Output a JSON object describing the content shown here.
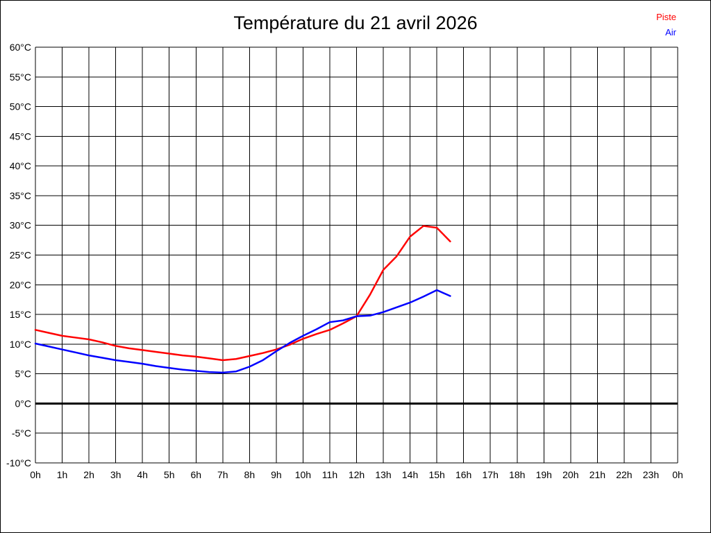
{
  "header": {
    "title": "Température du 21 avril 2026"
  },
  "legend": {
    "position": "top-right",
    "items": [
      {
        "label": "Piste",
        "color": "#ff0000"
      },
      {
        "label": "Air",
        "color": "#0000ff"
      }
    ]
  },
  "chart_data": {
    "type": "line",
    "title": "Température du 21 avril 2026",
    "xlabel": "",
    "ylabel": "",
    "x_unit": "hour of day",
    "y_unit": "°C",
    "xlim": [
      0,
      24
    ],
    "ylim": [
      -10,
      60
    ],
    "x_tick_step": 1,
    "y_tick_step": 5,
    "x_tick_labels": [
      "0h",
      "1h",
      "2h",
      "3h",
      "4h",
      "5h",
      "6h",
      "7h",
      "8h",
      "9h",
      "10h",
      "11h",
      "12h",
      "13h",
      "14h",
      "15h",
      "16h",
      "17h",
      "18h",
      "19h",
      "20h",
      "21h",
      "22h",
      "23h",
      "0h"
    ],
    "y_tick_labels": [
      "60°C",
      "55°C",
      "50°C",
      "45°C",
      "40°C",
      "35°C",
      "30°C",
      "25°C",
      "20°C",
      "15°C",
      "10°C",
      "5°C",
      "0°C",
      "-5°C",
      "-10°C"
    ],
    "grid": true,
    "grid_color": "#000000",
    "zero_line_value": 0,
    "zero_line_width": 3,
    "line_width": 2.5,
    "x": [
      0,
      0.5,
      1,
      1.5,
      2,
      2.5,
      3,
      3.5,
      4,
      4.5,
      5,
      5.5,
      6,
      6.5,
      7,
      7.5,
      8,
      8.5,
      9,
      9.5,
      10,
      10.5,
      11,
      11.5,
      12,
      12.5,
      13,
      13.5,
      14,
      14.5,
      15,
      15.5
    ],
    "series": [
      {
        "name": "Piste",
        "color": "#ff0000",
        "values": [
          12.4,
          11.9,
          11.4,
          11.1,
          10.8,
          10.3,
          9.7,
          9.3,
          9.0,
          8.7,
          8.4,
          8.1,
          7.9,
          7.6,
          7.3,
          7.5,
          8.0,
          8.5,
          9.1,
          9.9,
          10.9,
          11.7,
          12.4,
          13.5,
          14.7,
          18.3,
          22.5,
          24.8,
          28.1,
          29.9,
          29.6,
          27.3
        ]
      },
      {
        "name": "Air",
        "color": "#0000ff",
        "values": [
          10.1,
          9.6,
          9.1,
          8.6,
          8.1,
          7.7,
          7.3,
          7.0,
          6.7,
          6.3,
          6.0,
          5.7,
          5.5,
          5.3,
          5.2,
          5.4,
          6.2,
          7.3,
          8.8,
          10.2,
          11.4,
          12.5,
          13.7,
          14.0,
          14.7,
          14.8,
          15.4,
          16.2,
          17.0,
          18.0,
          19.1,
          18.1
        ]
      }
    ]
  }
}
